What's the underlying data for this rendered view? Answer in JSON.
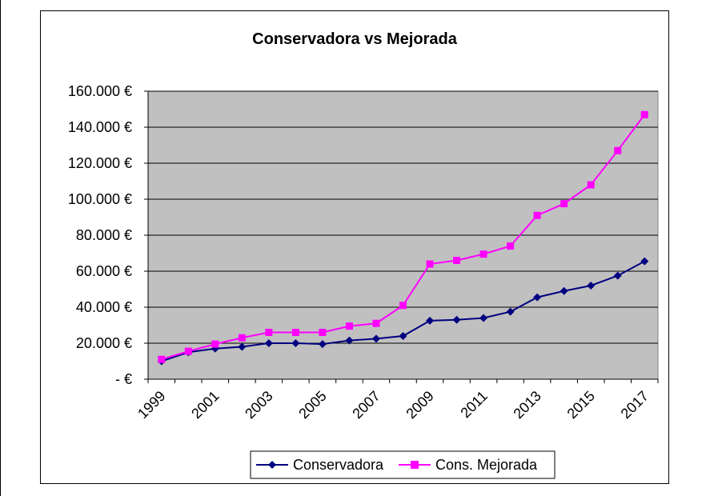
{
  "colors": {
    "plot_bg": "#c0c0c0",
    "grid": "#000000",
    "series_1": "#000080",
    "series_2": "#ff00ff"
  },
  "chart_data": {
    "type": "line",
    "title": "Conservadora vs  Mejorada",
    "x": [
      1999,
      2000,
      2001,
      2002,
      2003,
      2004,
      2005,
      2006,
      2007,
      2008,
      2009,
      2010,
      2011,
      2012,
      2013,
      2014,
      2015,
      2016,
      2017
    ],
    "x_tick_labels": [
      "1999",
      "2001",
      "2003",
      "2005",
      "2007",
      "2009",
      "2011",
      "2013",
      "2015",
      "2017"
    ],
    "y_tick_labels": [
      "-   €",
      "20.000 €",
      "40.000 €",
      "60.000 €",
      "80.000 €",
      "100.000 €",
      "120.000 €",
      "140.000 €",
      "160.000 €"
    ],
    "ylim": [
      0,
      160000
    ],
    "grid": true,
    "legend_position": "bottom",
    "series": [
      {
        "name": "Conservadora",
        "marker": "diamond",
        "values": [
          10000,
          15000,
          17000,
          18000,
          20000,
          20000,
          19500,
          21500,
          22500,
          24000,
          32500,
          33000,
          34000,
          37500,
          45500,
          49000,
          52000,
          57500,
          65500
        ]
      },
      {
        "name": "Cons. Mejorada",
        "marker": "square",
        "values": [
          11000,
          15500,
          19500,
          23000,
          26000,
          26000,
          26000,
          29500,
          31000,
          41000,
          64000,
          66000,
          69500,
          74000,
          91000,
          97500,
          108000,
          127000,
          147000
        ]
      }
    ]
  }
}
